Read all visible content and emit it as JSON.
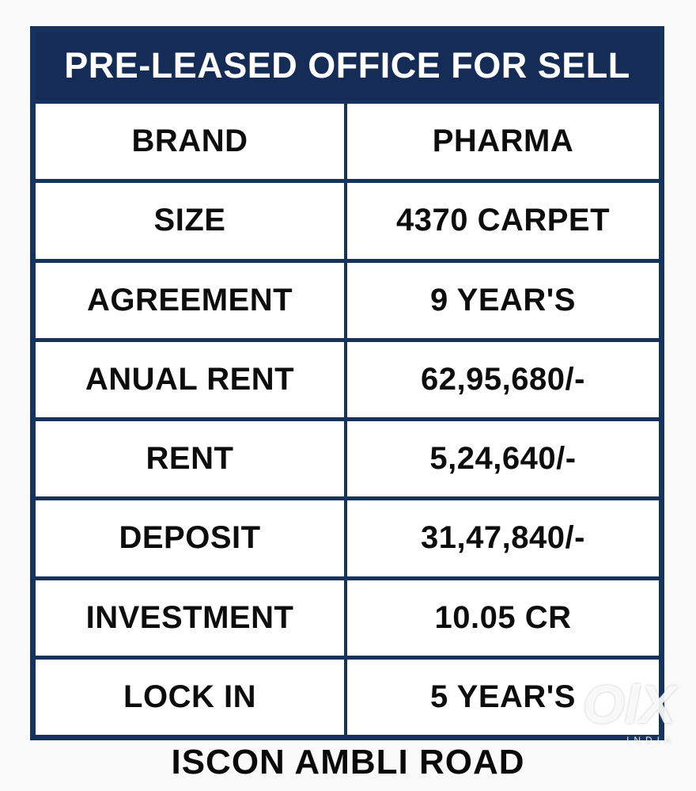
{
  "page": {
    "title": "PRE-LEASED OFFICE FOR SELL",
    "footer": "ISCON AMBLI ROAD"
  },
  "table": {
    "rows": [
      {
        "label": "BRAND",
        "value": "PHARMA"
      },
      {
        "label": "SIZE",
        "value": "4370 CARPET"
      },
      {
        "label": "AGREEMENT",
        "value": "9 YEAR'S"
      },
      {
        "label": "ANUAL RENT",
        "value": "62,95,680/-"
      },
      {
        "label": "RENT",
        "value": "5,24,640/-"
      },
      {
        "label": "DEPOSIT",
        "value": "31,47,840/-"
      },
      {
        "label": "INVESTMENT",
        "value": "10.05 CR"
      },
      {
        "label": "LOCK IN",
        "value": "5 YEAR'S"
      }
    ]
  },
  "watermark": {
    "brand": "OlX",
    "country": "INDIA"
  },
  "colors": {
    "navy": "#16335e",
    "header_bg": "#142c56",
    "text": "#0d0d0d",
    "background": "#fbfafa"
  }
}
